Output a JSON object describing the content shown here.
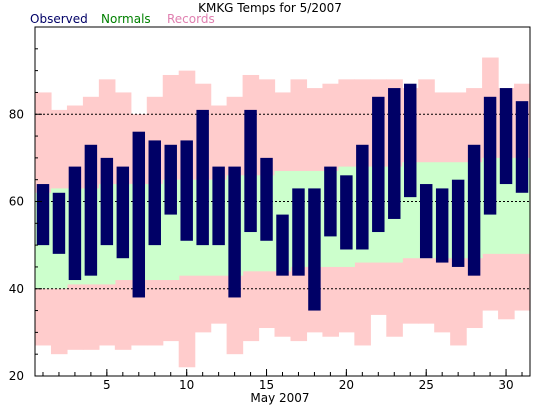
{
  "chart_data": {
    "type": "bar",
    "title": "KMKG Temps for 5/2007",
    "legend": [
      "Observed",
      "Normals",
      "Records"
    ],
    "xlabel": "May 2007",
    "ylabel": "",
    "xlim": [
      0.5,
      31.5
    ],
    "ylim": [
      20,
      100
    ],
    "x_ticks": [
      5,
      10,
      15,
      20,
      25,
      30
    ],
    "y_ticks": [
      20,
      40,
      60,
      80
    ],
    "gridlines_y": [
      40,
      60,
      80
    ],
    "days": [
      1,
      2,
      3,
      4,
      5,
      6,
      7,
      8,
      9,
      10,
      11,
      12,
      13,
      14,
      15,
      16,
      17,
      18,
      19,
      20,
      21,
      22,
      23,
      24,
      25,
      26,
      27,
      28,
      29,
      30,
      31
    ],
    "series": [
      {
        "name": "Records",
        "color": "#ffcccc",
        "high": [
          85,
          81,
          82,
          84,
          88,
          85,
          80,
          84,
          89,
          90,
          87,
          82,
          84,
          89,
          88,
          85,
          88,
          86,
          87,
          88,
          88,
          88,
          88,
          86,
          88,
          85,
          85,
          86,
          93,
          86,
          87
        ],
        "low": [
          27,
          25,
          26,
          26,
          27,
          26,
          27,
          27,
          28,
          22,
          30,
          32,
          25,
          28,
          31,
          29,
          28,
          30,
          29,
          30,
          27,
          34,
          29,
          32,
          32,
          30,
          27,
          31,
          35,
          33,
          35
        ]
      },
      {
        "name": "Normals",
        "color": "#ccffcc",
        "high": [
          62,
          63,
          63,
          63,
          64,
          64,
          64,
          64,
          65,
          65,
          65,
          65,
          66,
          66,
          66,
          67,
          67,
          67,
          67,
          68,
          68,
          68,
          68,
          69,
          69,
          69,
          69,
          69,
          70,
          70,
          70
        ],
        "low": [
          40,
          40,
          41,
          41,
          41,
          42,
          42,
          42,
          42,
          43,
          43,
          43,
          43,
          44,
          44,
          44,
          45,
          45,
          45,
          45,
          46,
          46,
          46,
          47,
          47,
          47,
          47,
          47,
          48,
          48,
          48
        ]
      },
      {
        "name": "Observed",
        "color": "#000066",
        "high": [
          64,
          62,
          68,
          73,
          70,
          68,
          76,
          74,
          73,
          74,
          81,
          68,
          68,
          81,
          70,
          57,
          63,
          63,
          68,
          66,
          73,
          84,
          86,
          87,
          64,
          63,
          65,
          73,
          84,
          86,
          83
        ],
        "low": [
          50,
          48,
          42,
          43,
          50,
          47,
          38,
          50,
          57,
          51,
          50,
          50,
          38,
          53,
          51,
          43,
          43,
          35,
          52,
          49,
          49,
          53,
          56,
          61,
          47,
          46,
          45,
          43,
          57,
          64,
          62
        ]
      }
    ]
  }
}
